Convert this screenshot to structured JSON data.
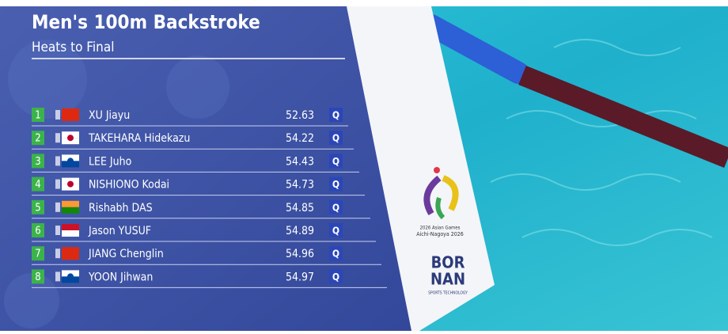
{
  "header": {
    "title": "Men's 100m Backstroke",
    "subtitle": "Heats to Final"
  },
  "results": [
    {
      "rank": "1",
      "name": "XU Jiayu",
      "time": "52.63",
      "qualifier": "Q"
    },
    {
      "rank": "2",
      "name": "TAKEHARA Hidekazu",
      "time": "54.22",
      "qualifier": "Q"
    },
    {
      "rank": "3",
      "name": "LEE Juho",
      "time": "54.43",
      "qualifier": "Q"
    },
    {
      "rank": "4",
      "name": "NISHIONO Kodai",
      "time": "54.73",
      "qualifier": "Q"
    },
    {
      "rank": "5",
      "name": "Rishabh DAS",
      "time": "54.85",
      "qualifier": "Q"
    },
    {
      "rank": "6",
      "name": "Jason YUSUF",
      "time": "54.89",
      "qualifier": "Q"
    },
    {
      "rank": "7",
      "name": "JIANG Chenglin",
      "time": "54.96",
      "qualifier": "Q"
    },
    {
      "rank": "8",
      "name": "YOON Jihwan",
      "time": "54.97",
      "qualifier": "Q"
    }
  ],
  "logos": {
    "games_line1": "2026 Asian Games",
    "games_line2": "Aichi-Nagoya 2026",
    "sponsor_line1": "BOR",
    "sponsor_line2": "NAN",
    "sponsor_tagline": "SPORTS TECHNOLOGY"
  }
}
